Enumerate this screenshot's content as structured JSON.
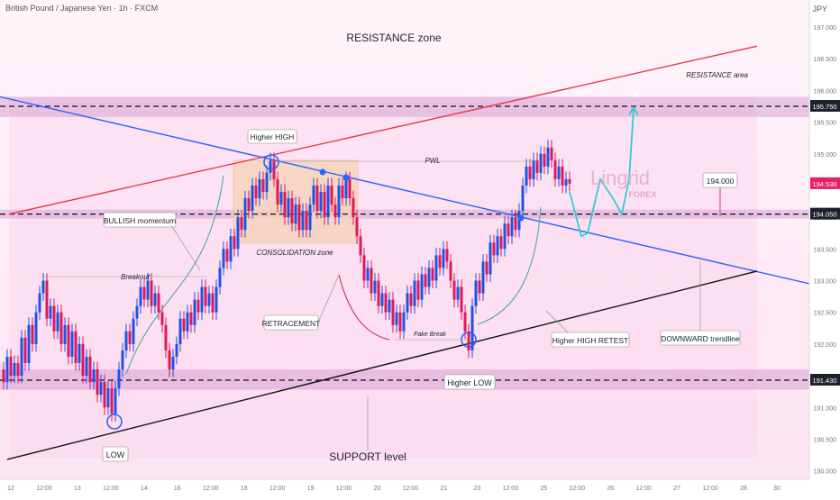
{
  "header": {
    "symbol": "British Pound / Japanese Yen · 1h · FXCM",
    "currency": "JPY"
  },
  "chart_data": {
    "type": "candlestick",
    "ylim": [
      189.95,
      197.35
    ],
    "y_ticks": [
      "197.000",
      "196.500",
      "196.000",
      "195.500",
      "195.000",
      "194.500",
      "194.000",
      "193.500",
      "193.000",
      "192.500",
      "192.000",
      "191.500",
      "191.000",
      "190.500",
      "190.000"
    ],
    "x_ticks": [
      "12",
      "12:00",
      "13",
      "12:00",
      "14",
      "16",
      "12:00",
      "18",
      "12:00",
      "19",
      "12:00",
      "20",
      "12:00",
      "21",
      "23",
      "12:00",
      "25",
      "12:00",
      "26",
      "12:00",
      "27",
      "12:00",
      "28",
      "30"
    ],
    "price_labels": [
      {
        "value": 195.75,
        "text": "195.750",
        "color": "#1e222d"
      },
      {
        "value": 194.53,
        "text": "194.530",
        "color": "#e91e63"
      },
      {
        "value": 194.05,
        "text": "194.050",
        "color": "#1e222d"
      },
      {
        "value": 191.43,
        "text": "191.430",
        "color": "#1e222d"
      }
    ],
    "price_trace": [
      [
        0,
        191.6
      ],
      [
        4,
        191.4
      ],
      [
        8,
        191.8
      ],
      [
        12,
        191.5
      ],
      [
        16,
        191.7
      ],
      [
        20,
        191.5
      ],
      [
        24,
        192.1
      ],
      [
        28,
        191.7
      ],
      [
        32,
        192.3
      ],
      [
        36,
        192.0
      ],
      [
        40,
        192.5
      ],
      [
        44,
        192.8
      ],
      [
        48,
        193.0
      ],
      [
        52,
        192.4
      ],
      [
        56,
        192.6
      ],
      [
        60,
        192.2
      ],
      [
        64,
        192.5
      ],
      [
        68,
        192.0
      ],
      [
        72,
        192.3
      ],
      [
        76,
        191.8
      ],
      [
        80,
        192.2
      ],
      [
        84,
        191.7
      ],
      [
        88,
        192.0
      ],
      [
        92,
        191.5
      ],
      [
        96,
        191.8
      ],
      [
        100,
        191.4
      ],
      [
        104,
        191.6
      ],
      [
        108,
        191.2
      ],
      [
        112,
        191.4
      ],
      [
        116,
        191.0
      ],
      [
        120,
        191.3
      ],
      [
        124,
        190.9
      ],
      [
        128,
        191.3
      ],
      [
        132,
        191.6
      ],
      [
        136,
        191.9
      ],
      [
        140,
        192.2
      ],
      [
        144,
        192.0
      ],
      [
        148,
        192.4
      ],
      [
        152,
        192.6
      ],
      [
        156,
        192.9
      ],
      [
        160,
        192.7
      ],
      [
        164,
        193.0
      ],
      [
        168,
        192.6
      ],
      [
        172,
        192.8
      ],
      [
        176,
        192.5
      ],
      [
        180,
        192.3
      ],
      [
        184,
        191.9
      ],
      [
        188,
        191.6
      ],
      [
        192,
        191.8
      ],
      [
        196,
        192.0
      ],
      [
        200,
        192.4
      ],
      [
        204,
        192.2
      ],
      [
        208,
        192.5
      ],
      [
        212,
        192.3
      ],
      [
        216,
        192.7
      ],
      [
        220,
        192.5
      ],
      [
        224,
        192.9
      ],
      [
        228,
        192.6
      ],
      [
        232,
        192.8
      ],
      [
        236,
        192.5
      ],
      [
        240,
        192.9
      ],
      [
        244,
        193.2
      ],
      [
        248,
        193.5
      ],
      [
        252,
        193.3
      ],
      [
        256,
        193.7
      ],
      [
        260,
        193.5
      ],
      [
        264,
        194.0
      ],
      [
        268,
        193.8
      ],
      [
        272,
        194.3
      ],
      [
        276,
        194.1
      ],
      [
        280,
        194.5
      ],
      [
        284,
        194.3
      ],
      [
        288,
        194.6
      ],
      [
        292,
        194.4
      ],
      [
        296,
        194.7
      ],
      [
        300,
        194.9
      ],
      [
        304,
        194.6
      ],
      [
        308,
        194.2
      ],
      [
        312,
        194.4
      ],
      [
        316,
        194.0
      ],
      [
        320,
        194.3
      ],
      [
        324,
        193.9
      ],
      [
        328,
        194.2
      ],
      [
        332,
        193.8
      ],
      [
        336,
        194.1
      ],
      [
        340,
        193.8
      ],
      [
        344,
        194.2
      ],
      [
        348,
        194.5
      ],
      [
        352,
        194.1
      ],
      [
        356,
        194.4
      ],
      [
        360,
        194.0
      ],
      [
        364,
        194.5
      ],
      [
        368,
        194.2
      ],
      [
        372,
        194.0
      ],
      [
        376,
        194.5
      ],
      [
        380,
        194.3
      ],
      [
        384,
        194.6
      ],
      [
        388,
        194.3
      ],
      [
        392,
        194.0
      ],
      [
        396,
        193.7
      ],
      [
        400,
        193.4
      ],
      [
        404,
        193.0
      ],
      [
        408,
        193.2
      ],
      [
        412,
        192.8
      ],
      [
        416,
        193.0
      ],
      [
        420,
        192.6
      ],
      [
        424,
        192.8
      ],
      [
        428,
        192.5
      ],
      [
        432,
        192.7
      ],
      [
        436,
        192.3
      ],
      [
        440,
        192.5
      ],
      [
        444,
        192.2
      ],
      [
        448,
        192.5
      ],
      [
        452,
        192.8
      ],
      [
        456,
        192.6
      ],
      [
        460,
        193.0
      ],
      [
        464,
        192.7
      ],
      [
        468,
        193.1
      ],
      [
        472,
        192.9
      ],
      [
        476,
        193.2
      ],
      [
        480,
        193.0
      ],
      [
        484,
        193.4
      ],
      [
        488,
        193.2
      ],
      [
        492,
        193.5
      ],
      [
        496,
        193.3
      ],
      [
        500,
        193.0
      ],
      [
        504,
        192.7
      ],
      [
        508,
        192.9
      ],
      [
        512,
        192.5
      ],
      [
        516,
        192.2
      ],
      [
        520,
        191.9
      ],
      [
        524,
        192.6
      ],
      [
        528,
        193.0
      ],
      [
        532,
        192.8
      ],
      [
        536,
        193.3
      ],
      [
        540,
        193.1
      ],
      [
        544,
        193.6
      ],
      [
        548,
        193.4
      ],
      [
        552,
        193.7
      ],
      [
        556,
        193.5
      ],
      [
        560,
        193.9
      ],
      [
        564,
        193.7
      ],
      [
        568,
        194.0
      ],
      [
        572,
        193.8
      ],
      [
        576,
        194.1
      ],
      [
        580,
        194.5
      ],
      [
        584,
        194.8
      ],
      [
        588,
        194.6
      ],
      [
        592,
        194.9
      ],
      [
        596,
        194.7
      ],
      [
        600,
        195.0
      ],
      [
        604,
        194.8
      ],
      [
        608,
        195.1
      ],
      [
        612,
        194.9
      ],
      [
        616,
        194.6
      ],
      [
        620,
        194.8
      ],
      [
        624,
        194.5
      ],
      [
        628,
        194.6
      ],
      [
        632,
        194.53
      ]
    ],
    "projection": [
      [
        632,
        194.4
      ],
      [
        645,
        193.7
      ],
      [
        652,
        193.75
      ],
      [
        666,
        194.6
      ],
      [
        680,
        194.3
      ],
      [
        690,
        194.05
      ],
      [
        698,
        194.6
      ],
      [
        703,
        195.7
      ]
    ],
    "trendlines": [
      {
        "name": "RESISTANCE trendline",
        "color": "#e8394a",
        "from": [
          10,
          194.05
        ],
        "to": [
          840,
          196.7
        ]
      },
      {
        "name": "DOWNWARD trendline",
        "color": "#2962ff",
        "from": [
          0,
          195.9
        ],
        "to": [
          932,
          192.84
        ]
      },
      {
        "name": "SUPPORT trendline",
        "color": "#111111",
        "from": [
          8,
          190.18
        ],
        "to": [
          840,
          193.15
        ]
      }
    ],
    "horizontal_levels": [
      {
        "value": 195.75,
        "style": "dashed"
      },
      {
        "value": 194.05,
        "style": "dashed"
      },
      {
        "value": 191.43,
        "style": "dashed"
      }
    ],
    "zones": [
      {
        "name": "resistance-area",
        "from": 195.58,
        "to": 195.9
      },
      {
        "name": "middle-zone",
        "from": 193.98,
        "to": 194.12
      },
      {
        "name": "support-zone",
        "from": 191.28,
        "to": 191.6
      }
    ],
    "annotations": {
      "resistance_zone": "RESISTANCE zone",
      "resistance_area": "RESISTANCE area",
      "higher_high": "Higher HIGH",
      "pwl": "PWL",
      "bullish_momentum": "BULLISH momentum",
      "consolidation_zone": "CONSOLIDATION zone",
      "breakout": "Breakout",
      "retracement": "RETRACEMENT",
      "fake_break": "Fake Break",
      "higher_high_retest": "Higher HIGH RETEST",
      "downward_trendline": "DOWNWARD trendline",
      "higher_low": "Higher LOW",
      "low": "LOW",
      "support_level": "SUPPORT level",
      "target": "194.000",
      "brand_top": "Lingrid",
      "brand_bottom": "FOREX"
    },
    "colors": {
      "up": "#1e53e5",
      "down": "#e0185a",
      "bg": "#fde3f2"
    }
  }
}
